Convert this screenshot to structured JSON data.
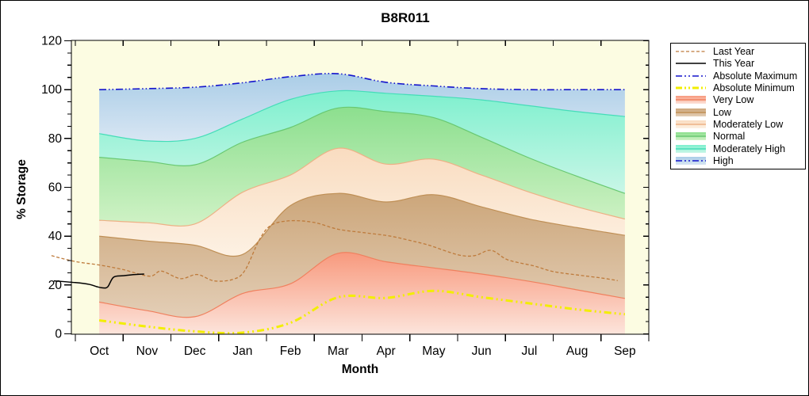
{
  "title": "B8R011",
  "axes": {
    "x_label": "Month",
    "y_label": "% Storage",
    "months": [
      "Oct",
      "Nov",
      "Dec",
      "Jan",
      "Feb",
      "Mar",
      "Apr",
      "May",
      "Jun",
      "Jul",
      "Aug",
      "Sep"
    ],
    "y_major_ticks": [
      0,
      20,
      40,
      60,
      80,
      100,
      120
    ],
    "y_minor_step": 5,
    "y_min": 0,
    "y_max": 120
  },
  "legend": {
    "items": [
      {
        "label": "Last Year",
        "symbol": "line",
        "color": "#BE7B3C",
        "dash": "4 2.5",
        "width": 1.3
      },
      {
        "label": "This Year",
        "symbol": "line",
        "color": "#000000",
        "dash": "",
        "width": 1.4
      },
      {
        "label": "Absolute Maximum",
        "symbol": "line",
        "color": "#1414CC",
        "dash": "8 3 2 3 2 3",
        "width": 1.6
      },
      {
        "label": "Absolute Minimum",
        "symbol": "line",
        "color": "#F2EE00",
        "dash": "8 3 2 3 2 3",
        "width": 3
      },
      {
        "label": "Very Low",
        "symbol": "band",
        "color": "#F0805E",
        "fill_top": "#F8997D",
        "fill_bottom": "#FCE4DB"
      },
      {
        "label": "Low",
        "symbol": "band",
        "color": "#BF8F55",
        "fill_top": "#CCA67A",
        "fill_bottom": "#E3CEB6"
      },
      {
        "label": "Moderately Low",
        "symbol": "band",
        "color": "#EDB185",
        "fill_top": "#F9DCC0",
        "fill_bottom": "#FDF1E3"
      },
      {
        "label": "Normal",
        "symbol": "band",
        "color": "#68C871",
        "fill_top": "#8CDF8E",
        "fill_bottom": "#D0F2C6"
      },
      {
        "label": "Moderately High",
        "symbol": "band",
        "color": "#44DDB8",
        "fill_top": "#7EF0CE",
        "fill_bottom": "#C9F6E7"
      },
      {
        "label": "High",
        "symbol": "band-line",
        "color": "#1414CC",
        "dash": "8 3 2 3 2 3",
        "fill_top": "#AACDE7",
        "fill_bottom": "#D8E6F3"
      }
    ]
  },
  "chart_data": {
    "type": "area",
    "title": "B8R011",
    "xlabel": "Month",
    "ylabel": "% Storage",
    "ylim": [
      0,
      120
    ],
    "categories": [
      "Oct",
      "Nov",
      "Dec",
      "Jan",
      "Feb",
      "Mar",
      "Apr",
      "May",
      "Jun",
      "Jul",
      "Aug",
      "Sep"
    ],
    "plot_bg": "#FCFCE2",
    "series": {
      "absolute_maximum": [
        100,
        100.4,
        101,
        102.8,
        105.3,
        106.5,
        103,
        101.5,
        100.4,
        100,
        100,
        100
      ],
      "moderately_high_top": [
        82,
        79,
        80,
        88,
        96,
        99.5,
        98.5,
        97.3,
        95.8,
        93.4,
        91,
        89
      ],
      "normal_top": [
        72.3,
        70.6,
        69.2,
        78.5,
        84.5,
        92.5,
        91,
        88.5,
        80.5,
        72,
        64.5,
        57.5
      ],
      "moderately_low_top": [
        46.5,
        45.5,
        45,
        58,
        65,
        76,
        69.5,
        71.5,
        65,
        58,
        52,
        47
      ],
      "low_top": [
        40,
        38,
        36.3,
        32.5,
        52.5,
        57.5,
        54,
        57,
        52,
        47,
        43.5,
        40.3
      ],
      "very_low_top": [
        13,
        9.5,
        7,
        16.5,
        20.5,
        33,
        29.5,
        27,
        24.5,
        21.5,
        18,
        14.5
      ],
      "absolute_minimum": [
        5.5,
        3,
        1,
        0.5,
        4.5,
        15,
        14.7,
        17.6,
        15,
        12.5,
        10,
        8
      ],
      "zero": [
        0,
        0,
        0,
        0,
        0,
        0,
        0,
        0,
        0,
        0,
        0,
        0
      ]
    },
    "bands": [
      {
        "name": "High",
        "top": "absolute_maximum",
        "bottom": "moderately_high_top",
        "fill_top": "#AACDE7",
        "fill_bottom": "#D8E6F3",
        "edge": "none"
      },
      {
        "name": "Moderately High",
        "top": "moderately_high_top",
        "bottom": "normal_top",
        "fill_top": "#7EF0CE",
        "fill_bottom": "#C9F6E7",
        "edge": "#44DDB8"
      },
      {
        "name": "Normal",
        "top": "normal_top",
        "bottom": "moderately_low_top",
        "fill_top": "#8CDF8E",
        "fill_bottom": "#D0F2C6",
        "edge": "#68C871"
      },
      {
        "name": "Moderately Low",
        "top": "moderately_low_top",
        "bottom": "low_top",
        "fill_top": "#F9DCC0",
        "fill_bottom": "#FDF1E3",
        "edge": "#EDB185"
      },
      {
        "name": "Low",
        "top": "low_top",
        "bottom": "very_low_top",
        "fill_top": "#CCA67A",
        "fill_bottom": "#E3CEB6",
        "edge": "#BF8F55"
      },
      {
        "name": "Very Low",
        "top": "very_low_top",
        "bottom": "zero",
        "fill_top": "#F8997D",
        "fill_bottom": "#FCE4DB",
        "edge": "#F0805E"
      }
    ],
    "lines": [
      {
        "name": "absolute_maximum",
        "series": "absolute_maximum",
        "color": "#1414CC",
        "width": 1.6,
        "dash": "9 3 1.5 3 1.5 3"
      },
      {
        "name": "absolute_minimum",
        "series": "absolute_minimum",
        "color": "#F2EE00",
        "width": 3,
        "dash": "9 4 2 4 2 4"
      },
      {
        "name": "last_year",
        "color": "#BE7B3C",
        "width": 1.3,
        "dash": "4 2.5",
        "points": [
          [
            -0.5,
            32
          ],
          [
            0,
            29.6
          ],
          [
            0.5,
            28.2
          ],
          [
            1,
            26.3
          ],
          [
            1.55,
            23.6
          ],
          [
            1.8,
            25.7
          ],
          [
            2.2,
            22.6
          ],
          [
            2.55,
            24.3
          ],
          [
            2.9,
            21.7
          ],
          [
            3.3,
            22.3
          ],
          [
            3.55,
            26
          ],
          [
            3.85,
            38.5
          ],
          [
            4.1,
            44.5
          ],
          [
            4.5,
            46.3
          ],
          [
            5,
            45.6
          ],
          [
            5.5,
            42.8
          ],
          [
            6.1,
            41.3
          ],
          [
            6.6,
            40
          ],
          [
            7.05,
            38
          ],
          [
            7.4,
            36.3
          ],
          [
            8,
            32.4
          ],
          [
            8.35,
            32
          ],
          [
            8.7,
            34.2
          ],
          [
            9.05,
            30.3
          ],
          [
            9.6,
            27.8
          ],
          [
            10,
            25.5
          ],
          [
            10.55,
            24
          ],
          [
            11,
            22.9
          ],
          [
            11.35,
            21.8
          ]
        ]
      },
      {
        "name": "this_year",
        "color": "#000000",
        "width": 1.5,
        "dash": "",
        "points": [
          [
            -0.45,
            21.7
          ],
          [
            0,
            21
          ],
          [
            0.3,
            20.2
          ],
          [
            0.45,
            19.3
          ],
          [
            0.58,
            18.8
          ],
          [
            0.68,
            19.3
          ],
          [
            0.8,
            23.2
          ],
          [
            1,
            23.8
          ],
          [
            1.25,
            24.3
          ],
          [
            1.44,
            24.5
          ]
        ]
      }
    ]
  }
}
